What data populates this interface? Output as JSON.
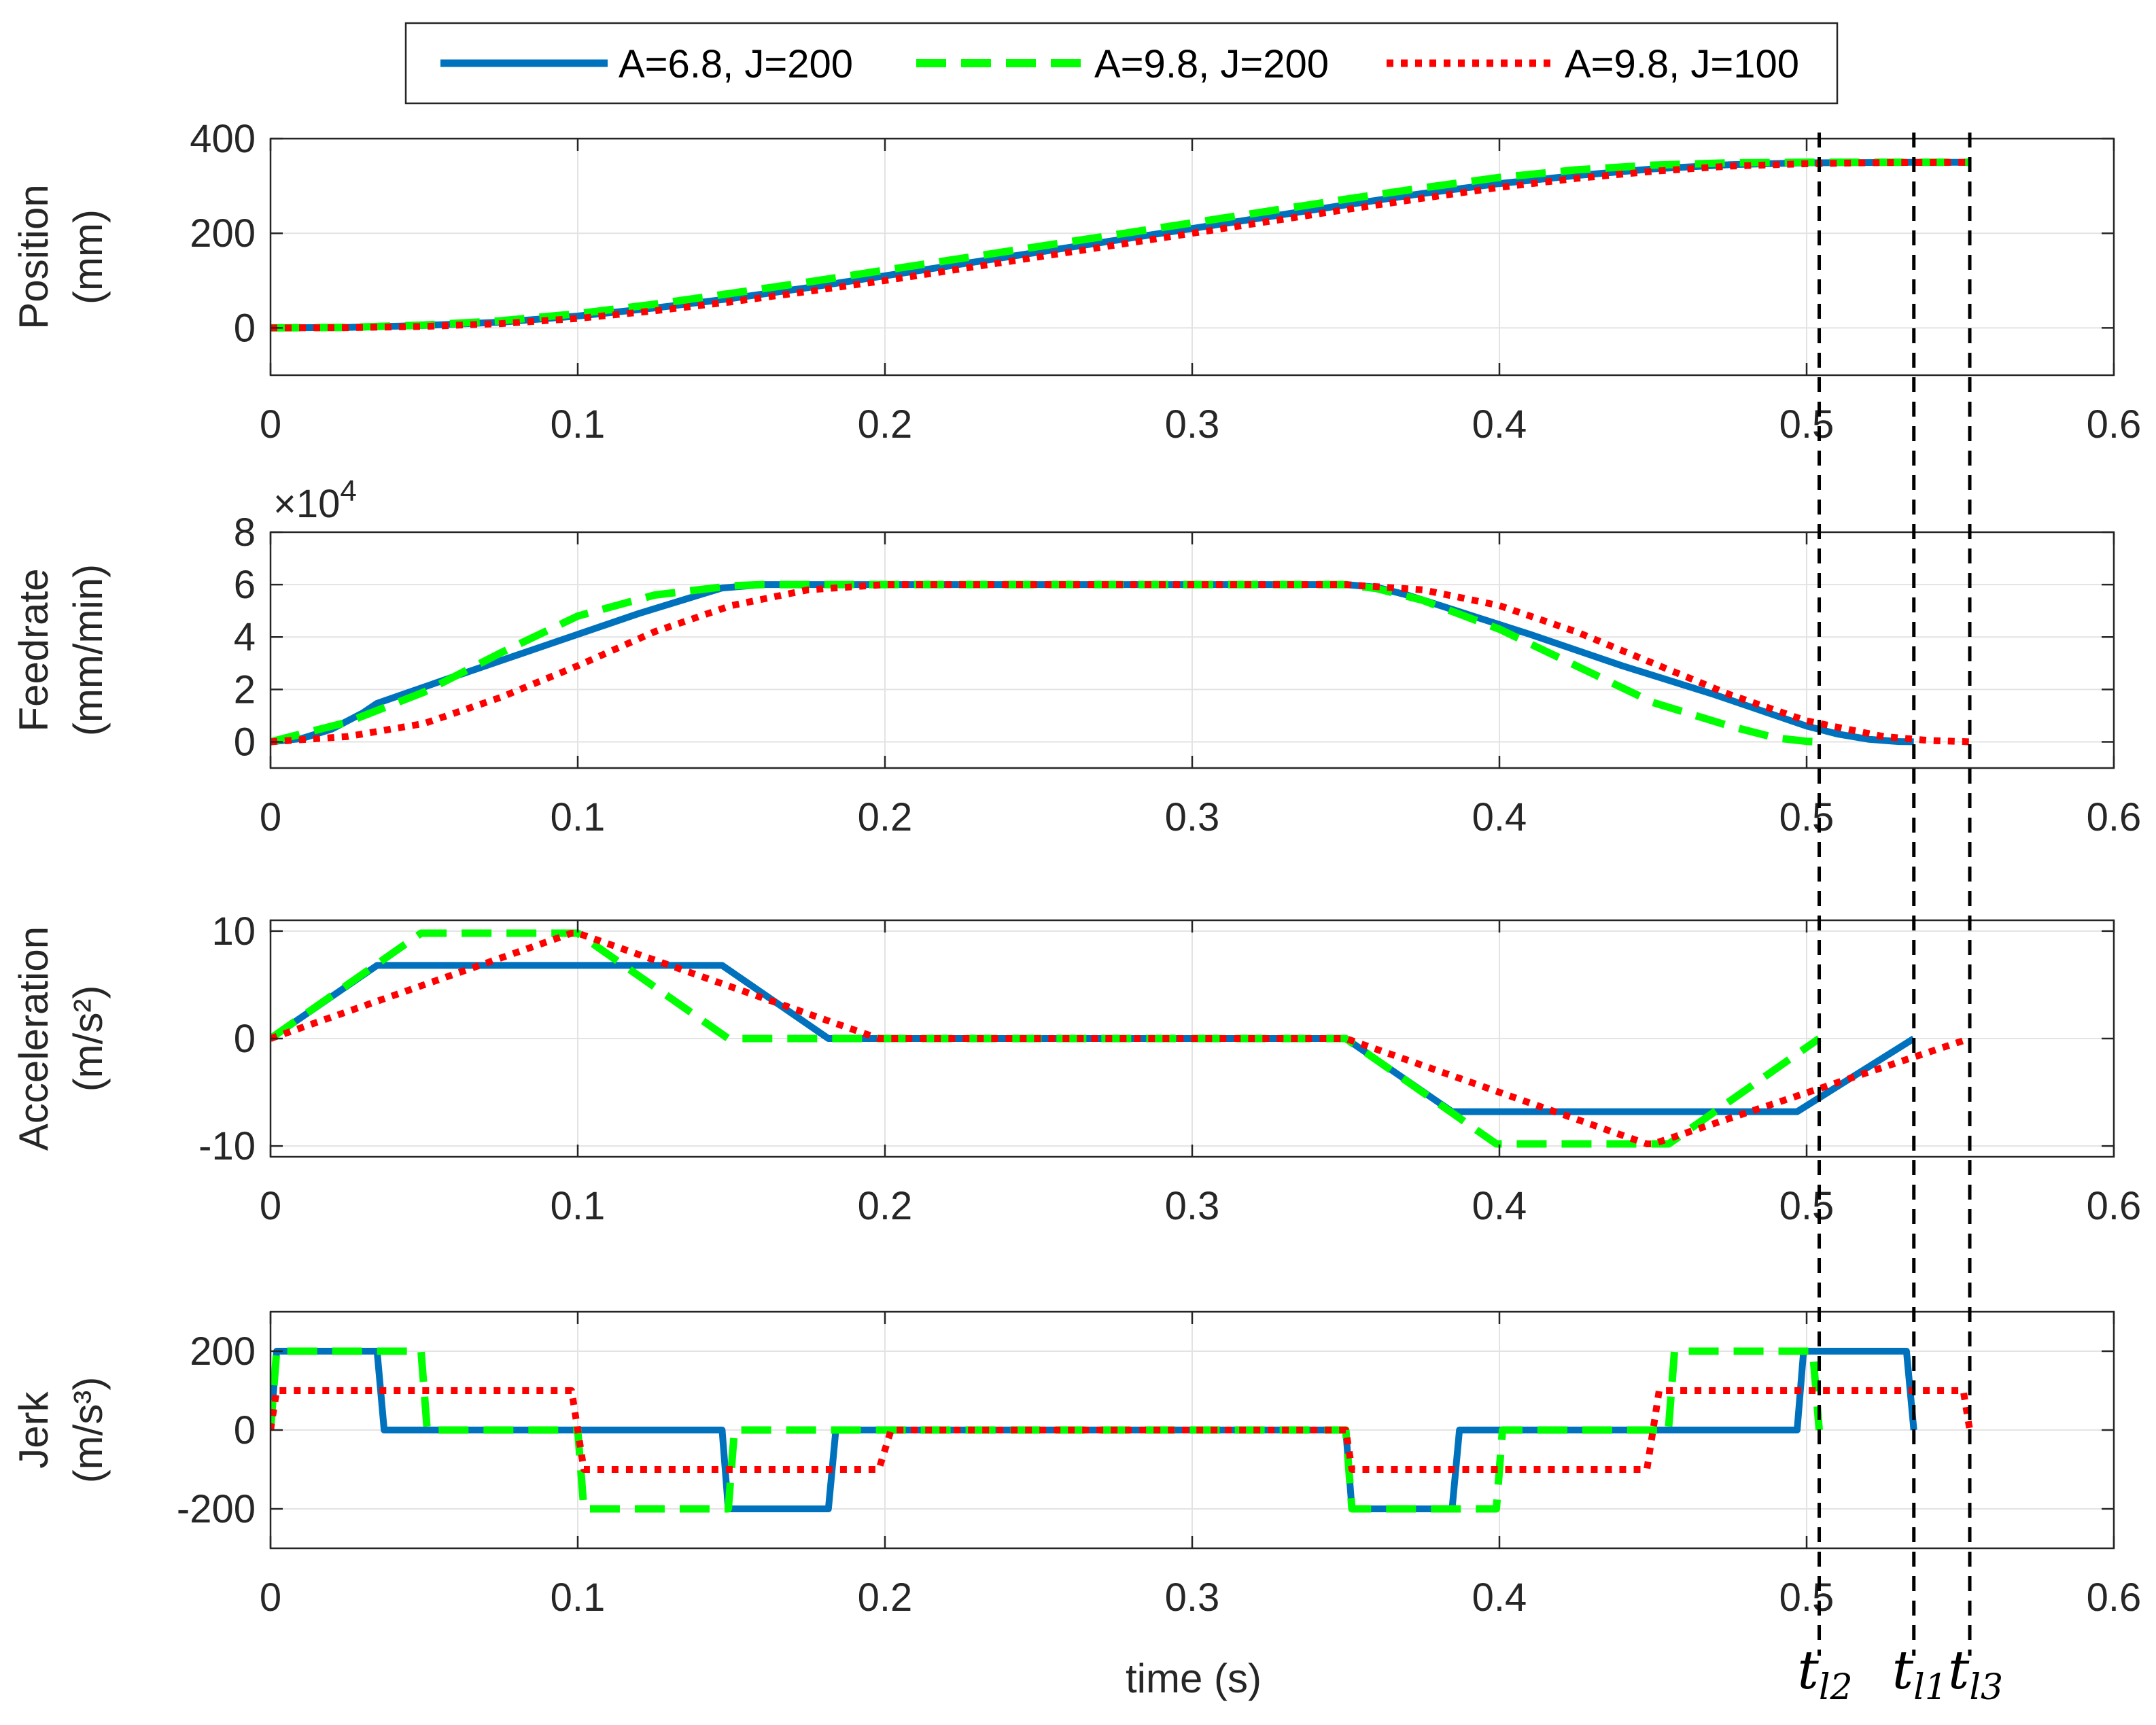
{
  "chart_data": {
    "type": "line",
    "x_axis": {
      "label": "time (s)",
      "lim": [
        0,
        0.6
      ],
      "ticks": [
        0,
        0.1,
        0.2,
        0.3,
        0.4,
        0.5,
        0.6
      ],
      "tick_labels": [
        "0",
        "0.1",
        "0.2",
        "0.3",
        "0.4",
        "0.5",
        "0.6"
      ]
    },
    "grid": true,
    "legend": {
      "placement": "top-center",
      "entries": [
        {
          "key": "s1",
          "label": "A=6.8, J=200",
          "color": "#0072BD",
          "style": "solid"
        },
        {
          "key": "s2",
          "label": "A=9.8, J=200",
          "color": "#00FF00",
          "style": "dashed"
        },
        {
          "key": "s3",
          "label": "A=9.8, J=100",
          "color": "#FF0000",
          "style": "dotted"
        }
      ]
    },
    "markers": [
      {
        "x": 0.5041,
        "label": "t",
        "sub": "l2"
      },
      {
        "x": 0.5349,
        "label": "t",
        "sub": "l1"
      },
      {
        "x": 0.5531,
        "label": "t",
        "sub": "l3"
      }
    ],
    "subplots": [
      {
        "id": "position",
        "ylabel": [
          "Position",
          "(mm)"
        ],
        "ylim": [
          -100,
          400
        ],
        "yticks": [
          0,
          200,
          400
        ],
        "ytick_labels": [
          "0",
          "200",
          "400"
        ],
        "exponent_label": "",
        "series": [
          {
            "key": "s1",
            "x": [
              0,
              0.025,
              0.05,
              0.075,
              0.1,
              0.125,
              0.15,
              0.175,
              0.2,
              0.25,
              0.3,
              0.35,
              0.375,
              0.4,
              0.425,
              0.45,
              0.475,
              0.5,
              0.5349,
              0.5531
            ],
            "y": [
              0,
              1,
              5,
              12,
              25,
              42,
              62,
              85,
              110,
              160,
              210,
              260,
              284,
              305,
              322,
              336,
              345,
              349,
              350,
              350
            ]
          },
          {
            "key": "s2",
            "x": [
              0,
              0.025,
              0.05,
              0.075,
              0.1,
              0.125,
              0.15,
              0.175,
              0.2,
              0.25,
              0.3,
              0.35,
              0.375,
              0.4,
              0.425,
              0.45,
              0.475,
              0.5,
              0.5349,
              0.5531
            ],
            "y": [
              0,
              1,
              6,
              15,
              30,
              50,
              73,
              97,
              122,
              172,
              222,
              272,
              296,
              318,
              334,
              344,
              349,
              350,
              350,
              350
            ]
          },
          {
            "key": "s3",
            "x": [
              0,
              0.025,
              0.05,
              0.075,
              0.1,
              0.125,
              0.15,
              0.175,
              0.2,
              0.25,
              0.3,
              0.35,
              0.375,
              0.4,
              0.425,
              0.45,
              0.475,
              0.5,
              0.525,
              0.5531
            ],
            "y": [
              0,
              0.5,
              3,
              9,
              20,
              36,
              55,
              77,
              100,
              150,
              200,
              250,
              274,
              297,
              316,
              331,
              342,
              347,
              349.5,
              350
            ]
          }
        ]
      },
      {
        "id": "feedrate",
        "ylabel": [
          "Feedrate",
          "(mm/min)"
        ],
        "ylim": [
          -1,
          8
        ],
        "yticks": [
          0,
          2,
          4,
          6,
          8
        ],
        "ytick_labels": [
          "0",
          "2",
          "4",
          "6",
          "8"
        ],
        "exponent_label": "×10",
        "exponent_power": "4",
        "series": [
          {
            "key": "s1",
            "x": [
              0,
              0.01,
              0.02,
              0.03,
              0.0347,
              0.06,
              0.09,
              0.12,
              0.147,
              0.16,
              0.1714,
              0.18,
              0.35,
              0.36,
              0.37,
              0.3826,
              0.41,
              0.44,
              0.47,
              0.5,
              0.51,
              0.52,
              0.53,
              0.5349
            ],
            "y": [
              0,
              0.12,
              0.49,
              1.1,
              1.47,
              2.5,
              3.7,
              4.9,
              5.87,
              6.0,
              6.0,
              6.0,
              6.0,
              5.9,
              5.6,
              5.13,
              4.1,
              2.9,
              1.8,
              0.6,
              0.3,
              0.1,
              0.01,
              0
            ]
          },
          {
            "key": "s2",
            "x": [
              0,
              0.025,
              0.05,
              0.075,
              0.1,
              0.125,
              0.15,
              0.16,
              0.175,
              0.35,
              0.36,
              0.375,
              0.4,
              0.425,
              0.45,
              0.475,
              0.49,
              0.5,
              0.5041
            ],
            "y": [
              0,
              0.75,
              1.9,
              3.4,
              4.8,
              5.6,
              5.95,
              6.0,
              6.0,
              6.0,
              5.85,
              5.4,
              4.3,
              2.9,
              1.5,
              0.6,
              0.15,
              0.02,
              0
            ]
          },
          {
            "key": "s3",
            "x": [
              0,
              0.025,
              0.05,
              0.075,
              0.1,
              0.125,
              0.15,
              0.175,
              0.2,
              0.35,
              0.375,
              0.4,
              0.425,
              0.45,
              0.475,
              0.5,
              0.525,
              0.54,
              0.5531
            ],
            "y": [
              0,
              0.2,
              0.7,
              1.7,
              2.9,
              4.2,
              5.2,
              5.8,
              6.0,
              6.0,
              5.8,
              5.2,
              4.2,
              3.0,
              1.8,
              0.8,
              0.2,
              0.05,
              0
            ]
          }
        ]
      },
      {
        "id": "acceleration",
        "ylabel": [
          "Acceleration",
          "(m/s²)"
        ],
        "ylim": [
          -11,
          11
        ],
        "yticks": [
          -10,
          0,
          10
        ],
        "ytick_labels": [
          "-10",
          "0",
          "10"
        ],
        "exponent_label": "",
        "series": [
          {
            "key": "s1",
            "x": [
              0,
              0.0347,
              0.147,
              0.1816,
              0.35,
              0.3846,
              0.4969,
              0.5349
            ],
            "y": [
              0,
              6.8,
              6.8,
              0,
              0,
              -6.8,
              -6.8,
              0
            ]
          },
          {
            "key": "s2",
            "x": [
              0,
              0.049,
              0.1,
              0.149,
              0.18,
              0.35,
              0.399,
              0.4051,
              0.4551,
              0.5041
            ],
            "y": [
              0,
              9.8,
              9.8,
              0,
              0,
              0,
              -9.8,
              -9.8,
              -9.8,
              0
            ]
          },
          {
            "key": "s3",
            "x": [
              0,
              0.098,
              0.1,
              0.198,
              0.35,
              0.448,
              0.45,
              0.5531
            ],
            "y": [
              0,
              9.8,
              9.8,
              0,
              0,
              -9.8,
              -9.8,
              0
            ]
          }
        ]
      },
      {
        "id": "jerk",
        "ylabel": [
          "Jerk",
          "(m/s³)"
        ],
        "ylim": [
          -300,
          300
        ],
        "yticks": [
          -200,
          0,
          200
        ],
        "ytick_labels": [
          "-200",
          "0",
          "200"
        ],
        "exponent_label": "",
        "series": [
          {
            "key": "s1",
            "x": [
              0,
              0.002,
              0.0347,
              0.037,
              0.147,
              0.149,
              0.1816,
              0.184,
              0.35,
              0.352,
              0.3846,
              0.387,
              0.4969,
              0.499,
              0.5325,
              0.5349
            ],
            "y": [
              0,
              200,
              200,
              0,
              0,
              -200,
              -200,
              0,
              0,
              -200,
              -200,
              0,
              0,
              200,
              200,
              0
            ]
          },
          {
            "key": "s2",
            "x": [
              0,
              0.002,
              0.049,
              0.051,
              0.1,
              0.102,
              0.149,
              0.151,
              0.35,
              0.352,
              0.399,
              0.401,
              0.455,
              0.457,
              0.502,
              0.5041
            ],
            "y": [
              0,
              200,
              200,
              0,
              0,
              -200,
              -200,
              0,
              0,
              -200,
              -200,
              0,
              0,
              200,
              200,
              0
            ]
          },
          {
            "key": "s3",
            "x": [
              0,
              0.002,
              0.098,
              0.102,
              0.198,
              0.202,
              0.35,
              0.352,
              0.448,
              0.452,
              0.551,
              0.5531
            ],
            "y": [
              0,
              100,
              100,
              -100,
              -100,
              0,
              0,
              -100,
              -100,
              100,
              100,
              0
            ]
          }
        ]
      }
    ]
  }
}
